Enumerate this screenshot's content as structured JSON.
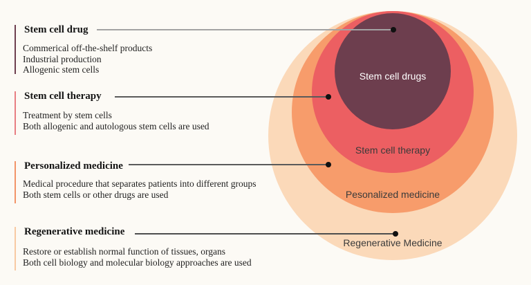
{
  "palette": {
    "background": "#fcfaf5",
    "circle_stem_cell_drugs": "#6d3e4e",
    "circle_stem_cell_therapy": "#ec5f62",
    "circle_personalized_medicine": "#f79c6b",
    "circle_regenerative_medicine": "#fbd9b9",
    "bar_stem_cell_drug": "#6d3e4e",
    "bar_stem_cell_therapy": "#e87e82",
    "bar_personalized_medicine": "#f29468",
    "bar_regenerative_medicine": "#f8c9a2",
    "leader_line_gray": "#a3a3a3",
    "leader_line_dark": "#5a5a5a",
    "circle_label_light": "#ffffff",
    "circle_label_dark": "#3a3a3a"
  },
  "sections": [
    {
      "title": "Stem cell drug",
      "lines": [
        "Commerical off-the-shelf products",
        "Industrial production",
        "Allogenic stem cells"
      ]
    },
    {
      "title": "Stem cell therapy",
      "lines": [
        "Treatment by stem cells",
        "Both allogenic and autologous stem cells are used"
      ]
    },
    {
      "title": "Personalized medicine",
      "lines": [
        "Medical procedure that separates patients into different groups",
        "Both stem cells or other drugs are used"
      ]
    },
    {
      "title": "Regenerative medicine",
      "lines": [
        "Restore or establish normal function of tissues, organs",
        "Both cell biology and molecular biology approaches are used"
      ]
    }
  ],
  "circles": [
    {
      "label": "Stem cell drugs"
    },
    {
      "label": "Stem cell therapy"
    },
    {
      "label": "Pesonalized medicine"
    },
    {
      "label": "Regenerative Medicine"
    }
  ]
}
